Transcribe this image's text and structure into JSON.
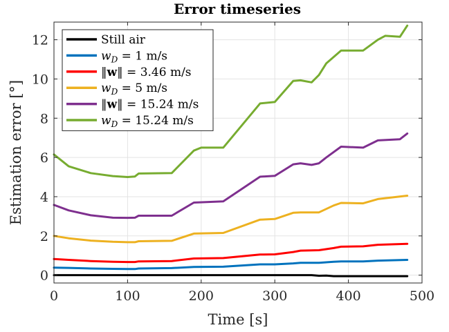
{
  "chart_data": {
    "type": "line",
    "title": "Error timeseries",
    "xlabel": "Time [s]",
    "ylabel": "Estimation error [°]",
    "xlim": [
      0,
      500
    ],
    "ylim": [
      -0.4,
      12.9
    ],
    "xticks": [
      0,
      100,
      200,
      300,
      400,
      500
    ],
    "yticks": [
      0,
      2,
      4,
      6,
      8,
      10,
      12
    ],
    "grid": true,
    "legend_position": "top-left",
    "series": [
      {
        "name": "Still air",
        "color": "#000000",
        "x": [
          0,
          100,
          200,
          300,
          350,
          360,
          370,
          380,
          400,
          480
        ],
        "y": [
          0.0,
          0.0,
          0.0,
          0.0,
          0.0,
          -0.03,
          -0.02,
          -0.05,
          -0.05,
          -0.05
        ]
      },
      {
        "name": "w_D = 1 m/s",
        "color": "#0072BD",
        "x": [
          0,
          20,
          50,
          80,
          100,
          110,
          115,
          160,
          190,
          230,
          280,
          300,
          325,
          335,
          360,
          380,
          390,
          420,
          440,
          480
        ],
        "y": [
          0.38,
          0.37,
          0.34,
          0.32,
          0.31,
          0.31,
          0.34,
          0.36,
          0.42,
          0.43,
          0.55,
          0.55,
          0.6,
          0.63,
          0.63,
          0.68,
          0.7,
          0.7,
          0.74,
          0.78
        ]
      },
      {
        "name": "‖w‖ = 3.46 m/s",
        "color": "#FF0000",
        "x": [
          0,
          20,
          50,
          80,
          100,
          110,
          115,
          160,
          190,
          230,
          280,
          300,
          325,
          335,
          360,
          380,
          390,
          420,
          440,
          480
        ],
        "y": [
          0.82,
          0.78,
          0.72,
          0.68,
          0.67,
          0.67,
          0.7,
          0.72,
          0.85,
          0.87,
          1.05,
          1.06,
          1.18,
          1.25,
          1.27,
          1.38,
          1.45,
          1.47,
          1.55,
          1.6
        ]
      },
      {
        "name": "w_D = 5 m/s",
        "color": "#EDB120",
        "x": [
          0,
          20,
          50,
          80,
          100,
          110,
          115,
          160,
          190,
          230,
          280,
          300,
          325,
          335,
          360,
          380,
          390,
          420,
          440,
          480
        ],
        "y": [
          2.0,
          1.88,
          1.76,
          1.7,
          1.68,
          1.68,
          1.73,
          1.75,
          2.12,
          2.15,
          2.83,
          2.86,
          3.18,
          3.2,
          3.2,
          3.55,
          3.68,
          3.66,
          3.88,
          4.05
        ]
      },
      {
        "name": "‖w‖ = 15.24 m/s",
        "color": "#7E2F8E",
        "x": [
          0,
          20,
          50,
          80,
          100,
          110,
          115,
          160,
          190,
          230,
          280,
          300,
          325,
          335,
          350,
          360,
          370,
          390,
          420,
          440,
          470,
          480
        ],
        "y": [
          3.58,
          3.3,
          3.05,
          2.93,
          2.92,
          2.93,
          3.03,
          3.03,
          3.7,
          3.76,
          5.02,
          5.06,
          5.65,
          5.7,
          5.62,
          5.7,
          6.0,
          6.55,
          6.5,
          6.87,
          6.93,
          7.22
        ]
      },
      {
        "name": "w_D = 15.24 m/s",
        "color": "#77AC30",
        "x": [
          0,
          20,
          50,
          80,
          100,
          110,
          115,
          160,
          190,
          200,
          230,
          280,
          300,
          325,
          335,
          350,
          360,
          370,
          390,
          420,
          440,
          450,
          470,
          480
        ],
        "y": [
          6.15,
          5.55,
          5.2,
          5.05,
          5.0,
          5.03,
          5.18,
          5.2,
          6.35,
          6.5,
          6.5,
          8.75,
          8.83,
          9.9,
          9.93,
          9.83,
          10.2,
          10.8,
          11.45,
          11.45,
          12.0,
          12.2,
          12.15,
          12.72
        ]
      }
    ]
  },
  "legend": {
    "items": [
      {
        "prefix": "Still air",
        "italic": "",
        "sub": "",
        "suffix": ""
      },
      {
        "prefix": "",
        "italic": "w",
        "sub": "D",
        "suffix": " = 1 m/s"
      },
      {
        "prefix": "‖",
        "bold": "w",
        "sub": "",
        "suffix": "‖ = 3.46 m/s"
      },
      {
        "prefix": "",
        "italic": "w",
        "sub": "D",
        "suffix": " = 5 m/s"
      },
      {
        "prefix": "‖",
        "bold": "w",
        "sub": "",
        "suffix": "‖ = 15.24 m/s"
      },
      {
        "prefix": "",
        "italic": "w",
        "sub": "D",
        "suffix": " = 15.24 m/s"
      }
    ]
  }
}
